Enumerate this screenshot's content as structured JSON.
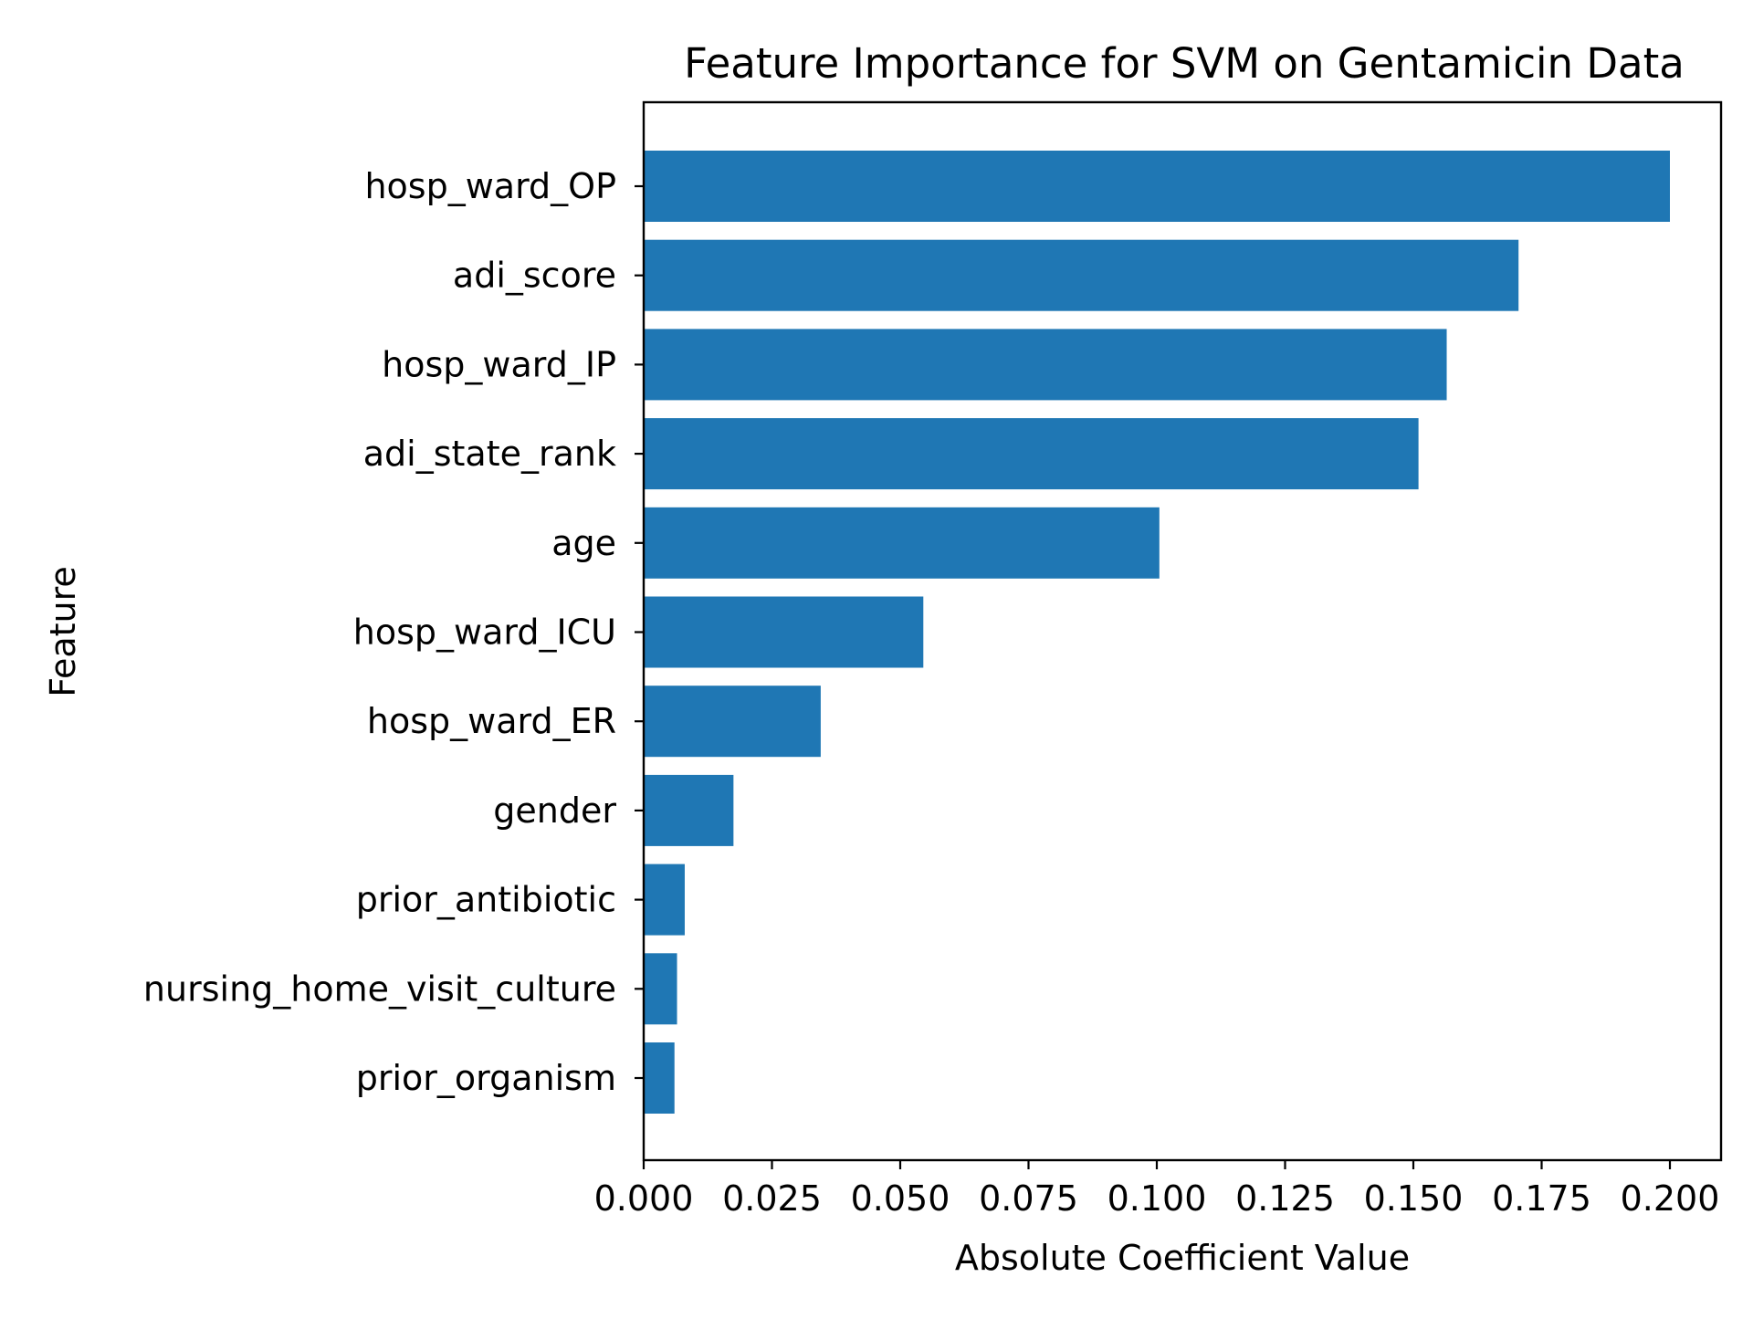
{
  "chart_data": {
    "type": "bar",
    "orientation": "horizontal",
    "title": "Feature Importance for SVM on Gentamicin Data",
    "xlabel": "Absolute Coefficient Value",
    "ylabel": "Feature",
    "xlim": [
      0.0,
      0.21
    ],
    "xticks": [
      "0.000",
      "0.025",
      "0.050",
      "0.075",
      "0.100",
      "0.125",
      "0.150",
      "0.175",
      "0.200"
    ],
    "grid": false,
    "bar_color": "#1f77b4",
    "categories": [
      "hosp_ward_OP",
      "adi_score",
      "hosp_ward_IP",
      "adi_state_rank",
      "age",
      "hosp_ward_ICU",
      "hosp_ward_ER",
      "gender",
      "prior_antibiotic",
      "nursing_home_visit_culture",
      "prior_organism"
    ],
    "values": [
      0.2,
      0.1705,
      0.1565,
      0.151,
      0.1005,
      0.0545,
      0.0345,
      0.0175,
      0.008,
      0.0065,
      0.006
    ]
  }
}
